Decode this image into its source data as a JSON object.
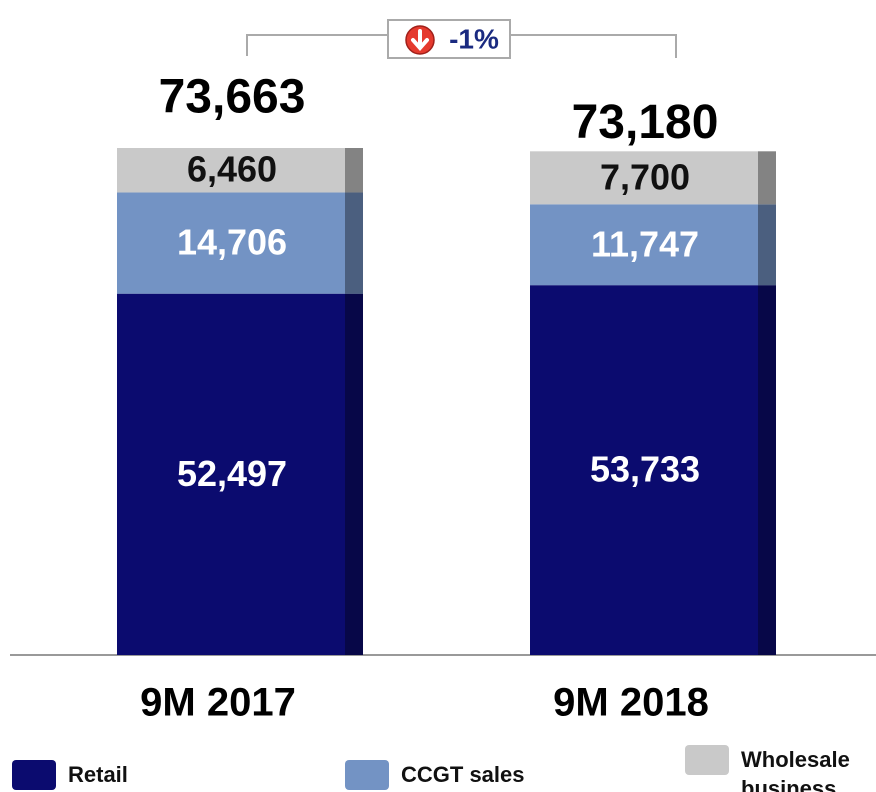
{
  "chart_data": {
    "type": "stacked_bar",
    "categories": [
      "9M 2017",
      "9M 2018"
    ],
    "series": [
      {
        "name": "Retail",
        "color": "#0b0b6f",
        "values": [
          52497,
          53733
        ],
        "value_labels": [
          "52,497",
          "53,733"
        ]
      },
      {
        "name": "CCGT sales",
        "color": "#7393c4",
        "values": [
          14706,
          11747
        ],
        "value_labels": [
          "14,706",
          "11,747"
        ]
      },
      {
        "name": "Wholesale business",
        "color": "#c9c9c9",
        "values": [
          6460,
          7700
        ],
        "value_labels": [
          "6,460",
          "7,700"
        ]
      }
    ],
    "totals": [
      73663,
      73180
    ],
    "total_labels": [
      "73,663",
      "73,180"
    ],
    "annotation": "-1%"
  }
}
